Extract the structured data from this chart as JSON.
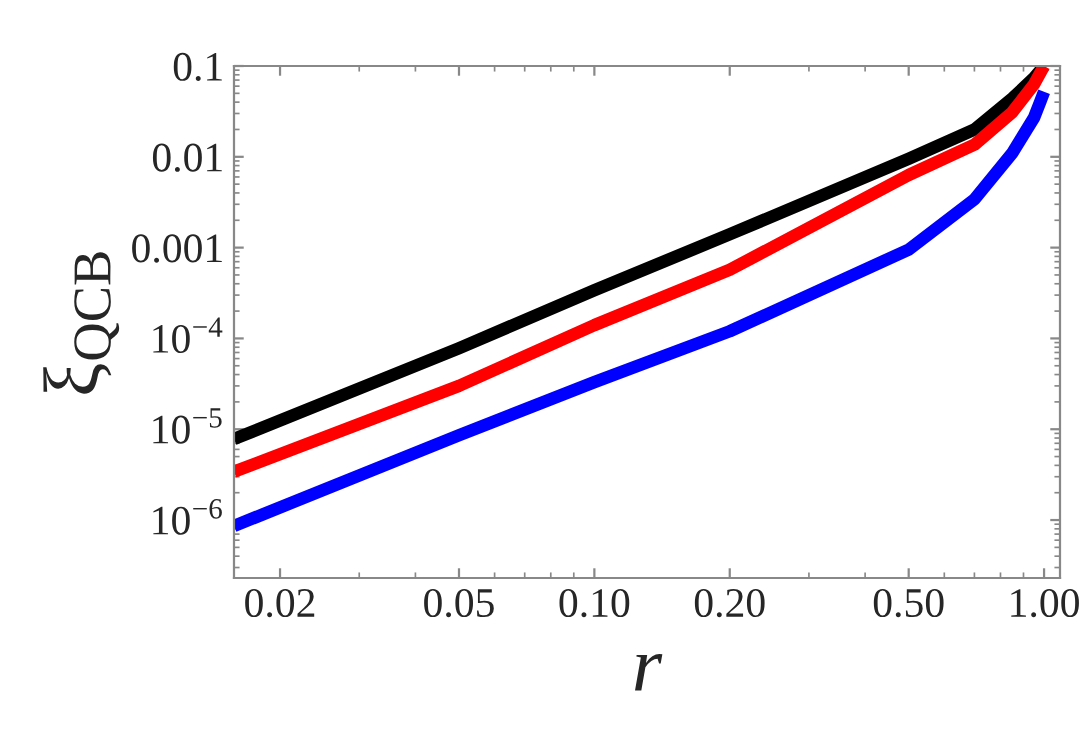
{
  "chart_data": {
    "type": "line",
    "xlabel": "r",
    "ylabel": "ξ$_{QCB}$",
    "log": "xy",
    "grid": false,
    "legend": false,
    "line_style": "solid",
    "marker": "none",
    "xlim": [
      0.0158,
      1.085
    ],
    "ylim": [
      2.3e-07,
      0.1
    ],
    "xticks": [
      {
        "value": 0.02,
        "label": "0.02"
      },
      {
        "value": 0.05,
        "label": "0.05"
      },
      {
        "value": 0.1,
        "label": "0.10"
      },
      {
        "value": 0.2,
        "label": "0.20"
      },
      {
        "value": 0.5,
        "label": "0.50"
      },
      {
        "value": 1,
        "label": "1.00"
      }
    ],
    "yticks": [
      {
        "value": 1e-06,
        "label": "10$^{−6}$"
      },
      {
        "value": 1e-05,
        "label": "10$^{−5}$"
      },
      {
        "value": 0.0001,
        "label": "10$^{−4}$"
      },
      {
        "value": 0.001,
        "label": "0.001"
      },
      {
        "value": 0.01,
        "label": "0.01"
      },
      {
        "value": 0.1,
        "label": "0.1"
      }
    ],
    "series": [
      {
        "color": "#000000",
        "x": [
          0.0158,
          0.05,
          0.1,
          0.2,
          0.5,
          0.7,
          0.85,
          0.95,
          1.0
        ],
        "values": [
          7.8e-06,
          7.8e-05,
          0.00034,
          0.0014,
          0.0095,
          0.02,
          0.044,
          0.074,
          0.1
        ]
      },
      {
        "color": "#ff0000",
        "x": [
          0.0158,
          0.05,
          0.1,
          0.2,
          0.5,
          0.7,
          0.85,
          0.95,
          1.0
        ],
        "values": [
          3.4e-06,
          3e-05,
          0.00014,
          0.00057,
          0.0063,
          0.0136,
          0.031,
          0.063,
          0.1
        ]
      },
      {
        "color": "#0000ff",
        "x": [
          0.0158,
          0.05,
          0.1,
          0.2,
          0.5,
          0.7,
          0.85,
          0.95,
          0.98,
          1.0
        ],
        "values": [
          8.6e-07,
          8.6e-06,
          3.3e-05,
          0.00012,
          0.00095,
          0.0034,
          0.011,
          0.027,
          0.04,
          0.052
        ]
      }
    ]
  }
}
